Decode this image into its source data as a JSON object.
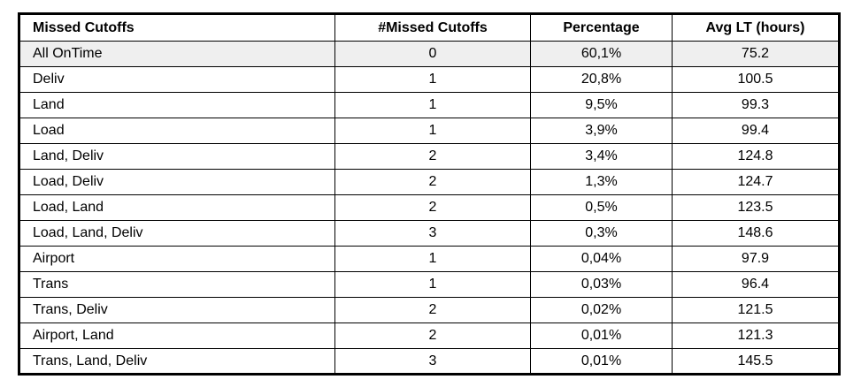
{
  "table": {
    "columns": [
      {
        "label": "Missed Cutoffs"
      },
      {
        "label": "#Missed Cutoffs"
      },
      {
        "label": "Percentage"
      },
      {
        "label": "Avg LT (hours)"
      }
    ],
    "rows": [
      {
        "missed_cutoffs": "All OnTime",
        "count": "0",
        "percentage": "60,1%",
        "avg_lt": "75.2",
        "highlighted": true
      },
      {
        "missed_cutoffs": "Deliv",
        "count": "1",
        "percentage": "20,8%",
        "avg_lt": "100.5",
        "highlighted": false
      },
      {
        "missed_cutoffs": "Land",
        "count": "1",
        "percentage": "9,5%",
        "avg_lt": "99.3",
        "highlighted": false
      },
      {
        "missed_cutoffs": "Load",
        "count": "1",
        "percentage": "3,9%",
        "avg_lt": "99.4",
        "highlighted": false
      },
      {
        "missed_cutoffs": "Land, Deliv",
        "count": "2",
        "percentage": "3,4%",
        "avg_lt": "124.8",
        "highlighted": false
      },
      {
        "missed_cutoffs": "Load, Deliv",
        "count": "2",
        "percentage": "1,3%",
        "avg_lt": "124.7",
        "highlighted": false
      },
      {
        "missed_cutoffs": "Load, Land",
        "count": "2",
        "percentage": "0,5%",
        "avg_lt": "123.5",
        "highlighted": false
      },
      {
        "missed_cutoffs": "Load, Land, Deliv",
        "count": "3",
        "percentage": "0,3%",
        "avg_lt": "148.6",
        "highlighted": false
      },
      {
        "missed_cutoffs": "Airport",
        "count": "1",
        "percentage": "0,04%",
        "avg_lt": "97.9",
        "highlighted": false
      },
      {
        "missed_cutoffs": "Trans",
        "count": "1",
        "percentage": "0,03%",
        "avg_lt": "96.4",
        "highlighted": false
      },
      {
        "missed_cutoffs": "Trans, Deliv",
        "count": "2",
        "percentage": "0,02%",
        "avg_lt": "121.5",
        "highlighted": false
      },
      {
        "missed_cutoffs": "Airport, Land",
        "count": "2",
        "percentage": "0,01%",
        "avg_lt": "121.3",
        "highlighted": false
      },
      {
        "missed_cutoffs": "Trans, Land, Deliv",
        "count": "3",
        "percentage": "0,01%",
        "avg_lt": "145.5",
        "highlighted": false
      }
    ]
  },
  "colors": {
    "border": "#000000",
    "text": "#000000",
    "background": "#ffffff",
    "highlight_row_bg": "#efefef"
  },
  "chart_data": {
    "type": "table",
    "title": "Missed Cutoffs",
    "columns": [
      "Missed Cutoffs",
      "#Missed Cutoffs",
      "Percentage",
      "Avg LT (hours)"
    ],
    "rows": [
      [
        "All OnTime",
        0,
        "60,1%",
        75.2
      ],
      [
        "Deliv",
        1,
        "20,8%",
        100.5
      ],
      [
        "Land",
        1,
        "9,5%",
        99.3
      ],
      [
        "Load",
        1,
        "3,9%",
        99.4
      ],
      [
        "Land, Deliv",
        2,
        "3,4%",
        124.8
      ],
      [
        "Load, Deliv",
        2,
        "1,3%",
        124.7
      ],
      [
        "Load, Land",
        2,
        "0,5%",
        123.5
      ],
      [
        "Load, Land, Deliv",
        3,
        "0,3%",
        148.6
      ],
      [
        "Airport",
        1,
        "0,04%",
        97.9
      ],
      [
        "Trans",
        1,
        "0,03%",
        96.4
      ],
      [
        "Trans, Deliv",
        2,
        "0,02%",
        121.5
      ],
      [
        "Airport, Land",
        2,
        "0,01%",
        121.3
      ],
      [
        "Trans, Land, Deliv",
        3,
        "0,01%",
        145.5
      ]
    ]
  }
}
